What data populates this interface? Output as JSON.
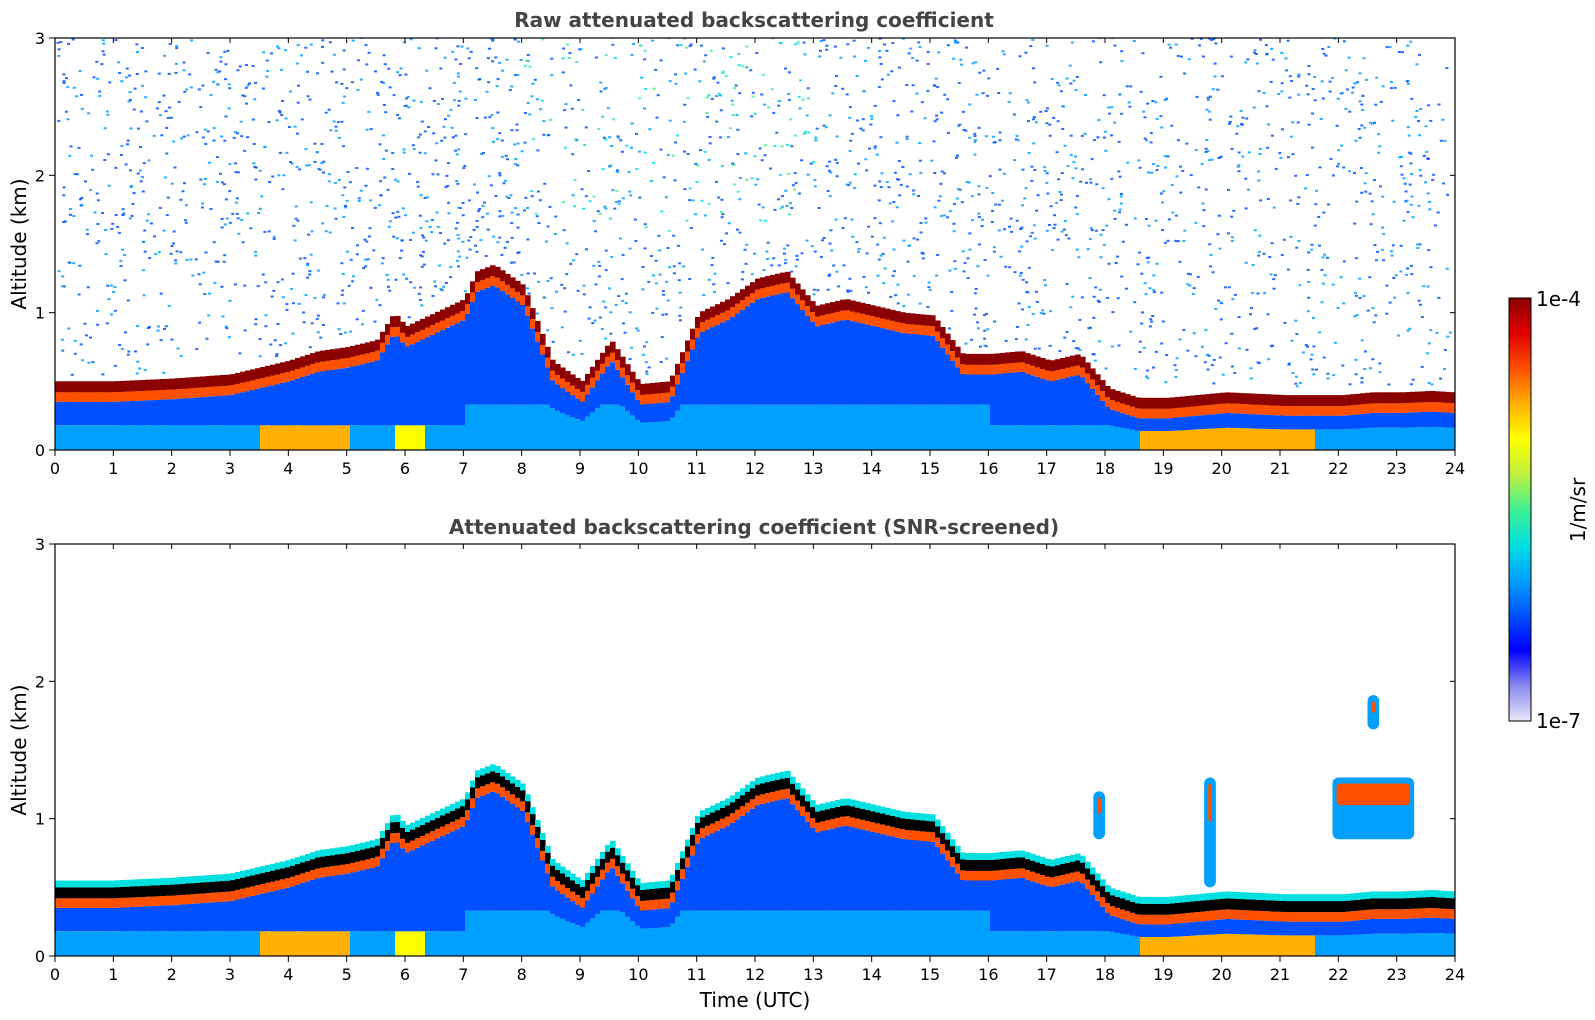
{
  "chart_data": [
    {
      "type": "heatmap",
      "title": "Raw attenuated backscattering coefficient",
      "xlabel": "",
      "ylabel": "Altitude (km)",
      "xlim": [
        0,
        24
      ],
      "ylim": [
        0,
        3
      ],
      "xticks": [
        0,
        1,
        2,
        3,
        4,
        5,
        6,
        7,
        8,
        9,
        10,
        11,
        12,
        13,
        14,
        15,
        16,
        17,
        18,
        19,
        20,
        21,
        22,
        23,
        24
      ],
      "yticks": [
        0,
        1,
        2,
        3
      ],
      "screened": false,
      "boundary_layer_km": {
        "time": [
          0,
          1,
          2,
          3,
          3.5,
          4,
          4.5,
          5,
          5.5,
          5.8,
          6,
          6.5,
          7,
          7.2,
          7.5,
          8,
          8.5,
          9,
          9.5,
          10,
          10.5,
          11,
          11.5,
          12,
          12.5,
          13,
          13.5,
          14,
          14.5,
          15,
          15.5,
          16,
          16.5,
          17,
          17.5,
          18,
          18.5,
          19,
          20,
          21,
          22,
          22.5,
          23,
          23.5,
          23.9
        ],
        "altitude": [
          0.4,
          0.4,
          0.42,
          0.45,
          0.5,
          0.55,
          0.62,
          0.65,
          0.7,
          0.9,
          0.8,
          0.9,
          1.0,
          1.2,
          1.25,
          1.1,
          0.55,
          0.4,
          0.7,
          0.38,
          0.4,
          0.9,
          1.0,
          1.15,
          1.2,
          0.95,
          1.0,
          0.95,
          0.9,
          0.88,
          0.6,
          0.6,
          0.62,
          0.55,
          0.6,
          0.35,
          0.28,
          0.28,
          0.32,
          0.3,
          0.3,
          0.32,
          0.32,
          0.33,
          0.32
        ]
      }
    },
    {
      "type": "heatmap",
      "title": "Attenuated backscattering coefficient (SNR-screened)",
      "xlabel": "Time (UTC)",
      "ylabel": "Altitude (km)",
      "xlim": [
        0,
        24
      ],
      "ylim": [
        0,
        3
      ],
      "xticks": [
        0,
        1,
        2,
        3,
        4,
        5,
        6,
        7,
        8,
        9,
        10,
        11,
        12,
        13,
        14,
        15,
        16,
        17,
        18,
        19,
        20,
        21,
        22,
        23,
        24
      ],
      "yticks": [
        0,
        1,
        2,
        3
      ],
      "screened": true,
      "elevated_layers_km": [
        {
          "t0": 21.9,
          "t1": 23.3,
          "bottom": 0.85,
          "top": 1.3
        },
        {
          "t0": 22.5,
          "t1": 22.7,
          "bottom": 1.65,
          "top": 1.9
        },
        {
          "t0": 17.8,
          "t1": 18.0,
          "bottom": 0.85,
          "top": 1.2
        },
        {
          "t0": 19.7,
          "t1": 19.9,
          "bottom": 0.5,
          "top": 1.3
        }
      ]
    }
  ],
  "colorbar": {
    "label": "1/m/sr",
    "min_label": "1e-7",
    "max_label": "1e-4",
    "colormap": [
      "#e8e8f8",
      "#8a8af0",
      "#0000ff",
      "#0050ff",
      "#00a0ff",
      "#00e0e0",
      "#40f090",
      "#c0f040",
      "#ffff00",
      "#ffb000",
      "#ff5000",
      "#e00000",
      "#8b0000"
    ]
  }
}
